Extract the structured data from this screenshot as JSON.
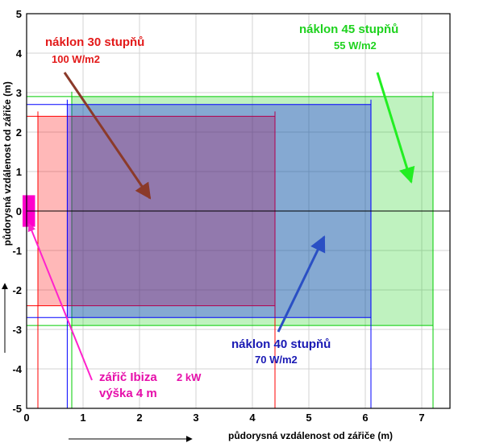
{
  "chart_data": {
    "type": "area",
    "xlabel": "půdorysná vzdálenost od zářiče (m)",
    "ylabel": "půdorysná vzdálenost od zářiče (m)",
    "xlim": [
      0,
      7.5
    ],
    "ylim": [
      -5,
      5
    ],
    "x_ticks": [
      "0",
      "1",
      "2",
      "3",
      "4",
      "5",
      "6",
      "7"
    ],
    "y_ticks": [
      "5",
      "4",
      "3",
      "2",
      "1",
      "0",
      "-1",
      "-2",
      "-3",
      "-4",
      "-5"
    ],
    "grid": true,
    "colors": {
      "tilt30": "#ff0000",
      "tilt40": "#0000ff",
      "tilt45": "#00cc00",
      "heater": "#ff00cc",
      "tilt30_label": "#e31a1a",
      "tilt40_label": "#1a1ab4",
      "tilt45_label": "#1ed21e",
      "heater_label": "#e60faa",
      "arrow30": "#8b3a2a",
      "arrow40": "#2a4fc4",
      "arrow45": "#22ee22",
      "arrow_heater": "#ff22cc"
    },
    "zones": [
      {
        "id": "tilt30",
        "x": [
          0.2,
          4.4
        ],
        "y": [
          -2.4,
          2.4
        ],
        "label": "náklon 30 stupňů",
        "value": "100  W/m2"
      },
      {
        "id": "tilt40",
        "x": [
          0.72,
          6.1
        ],
        "y": [
          -2.7,
          2.7
        ],
        "label": "náklon 40 stupňů",
        "value": "70  W/m2"
      },
      {
        "id": "tilt45",
        "x": [
          0.8,
          7.2
        ],
        "y": [
          -2.9,
          2.9
        ],
        "label": "náklon 45 stupňů",
        "value": "55  W/m2"
      }
    ],
    "heater": {
      "x": [
        0,
        0.15
      ],
      "y": [
        -0.4,
        0.4
      ],
      "label": "zářič Ibiza",
      "power": "2 kW",
      "height": "výška 4 m"
    }
  }
}
